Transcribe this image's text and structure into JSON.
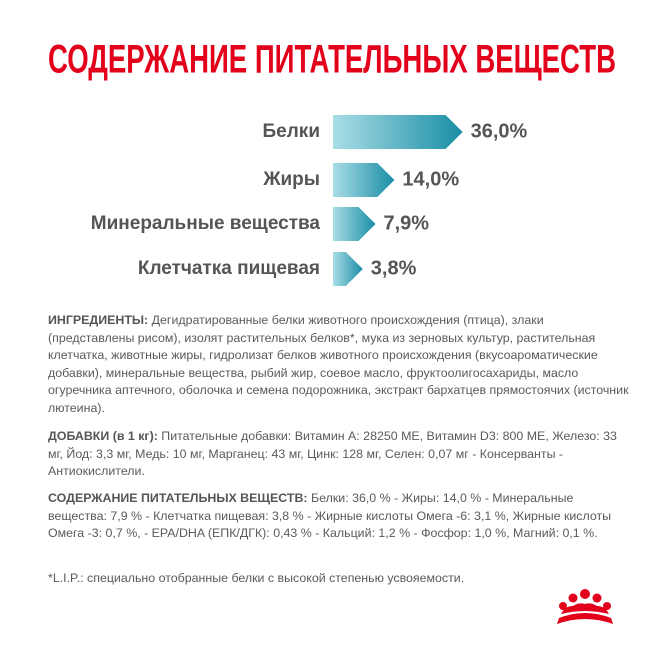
{
  "chart_data": {
    "type": "bar",
    "orientation": "horizontal",
    "title": "СОДЕРЖАНИЕ ПИТАТЕЛЬНЫХ ВЕЩЕСТВ",
    "categories": [
      "Белки",
      "Жиры",
      "Минеральные вещества",
      "Клетчатка пищевая"
    ],
    "values": [
      36,
      14,
      7.9,
      3.8
    ],
    "value_labels": [
      "36,0%",
      "14,0%",
      "7,9%",
      "3,8%"
    ],
    "color": "#1a8ea6"
  },
  "ingredients": {
    "label": "ИНГРЕДИЕНТЫ:",
    "text": "Дегидратированные белки животного происхождения (птица), злаки (представлены рисом), изолят растительных белков*, мука из зерновых культур, растительная клетчатка, животные жиры, гидролизат белков животного происхождения (вкусоароматические добавки), минеральные вещества, рыбий жир, соевое масло, фруктоолигосахариды, масло огуречника аптечного, оболочка и семена подорожника, экстракт бархатцев прямостоячих (источник лютеина)."
  },
  "additives": {
    "label": "ДОБАВКИ (в 1 кг):",
    "text": "Питательные добавки: Витамин А: 28250 МЕ, Витамин D3: 800 МЕ, Железо: 33 мг, Йод: 3,3 мг, Медь: 10 мг, Марганец: 43 мг, Цинк: 128 мг, Селен: 0,07 мг - Консерванты - Антиокислители."
  },
  "nutrients": {
    "label": "СОДЕРЖАНИЕ ПИТАТЕЛЬНЫХ ВЕЩЕСТВ:",
    "text": "Белки: 36,0 % - Жиры: 14,0 % - Минеральные вещества: 7,9 % - Клетчатка пищевая: 3,8 % - Жирные кислоты Омега -6: 3,1 %, Жирные кислоты Омега -3: 0,7 %, - EPA/DHA (ЕПК/ДГК): 0,43 % - Кальций: 1,2 % - Фосфор: 1,0 %, Магний: 0,1 %."
  },
  "footnote": "*L.I.P.: специально отобранные белки с высокой степенью усвояемости."
}
